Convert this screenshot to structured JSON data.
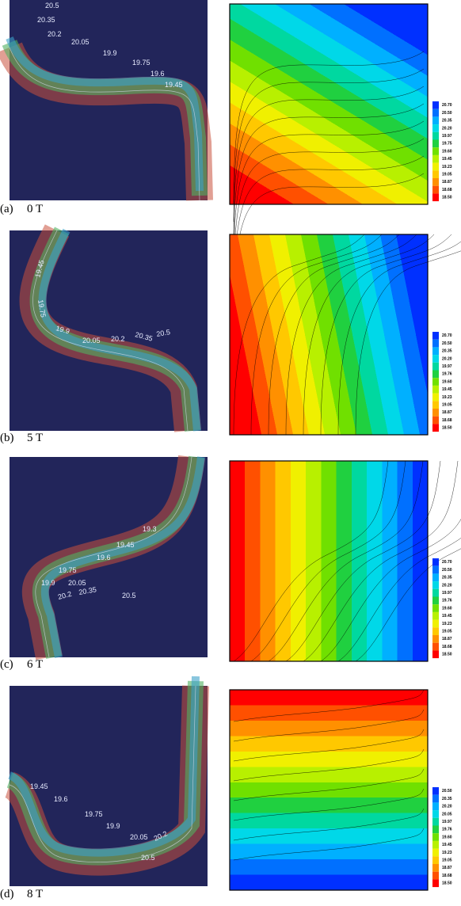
{
  "panels": [
    {
      "letter": "(a)",
      "field": "0 T",
      "photo_labels": [
        "20.5",
        "20.35",
        "20.2",
        "20.05",
        "19.9",
        "19.75",
        "19.6",
        "19.45"
      ],
      "colorbar_labels": [
        "20.70",
        "20.50",
        "20.35",
        "20.20",
        "19.97",
        "19.75",
        "19.60",
        "19.45",
        "19.23",
        "19.05",
        "18.87",
        "18.68",
        "18.50"
      ]
    },
    {
      "letter": "(b)",
      "field": "5 T",
      "photo_labels": [
        "19.45",
        "19.75",
        "19.9",
        "20.05",
        "20.2",
        "20.35",
        "20.5"
      ],
      "colorbar_labels": [
        "20.70",
        "20.50",
        "20.35",
        "20.20",
        "19.97",
        "19.76",
        "19.60",
        "19.45",
        "19.23",
        "19.05",
        "18.87",
        "18.68",
        "18.50"
      ]
    },
    {
      "letter": "(c)",
      "field": "6 T",
      "photo_labels": [
        "19.3",
        "19.45",
        "19.6",
        "19.75",
        "19.9",
        "20.05",
        "20.2",
        "20.35",
        "20.5"
      ],
      "colorbar_labels": [
        "20.70",
        "20.50",
        "20.35",
        "20.20",
        "19.97",
        "19.76",
        "19.60",
        "19.45",
        "19.23",
        "19.05",
        "18.87",
        "18.68",
        "18.50"
      ]
    },
    {
      "letter": "(d)",
      "field": "8 T",
      "photo_labels": [
        "19.45",
        "19.6",
        "19.75",
        "19.9",
        "20.05",
        "20.2",
        "20.5"
      ],
      "colorbar_labels": [
        "20.50",
        "20.35",
        "20.20",
        "20.05",
        "19.97",
        "19.76",
        "19.60",
        "19.45",
        "19.23",
        "19.05",
        "18.87",
        "18.68",
        "18.50"
      ]
    }
  ]
}
